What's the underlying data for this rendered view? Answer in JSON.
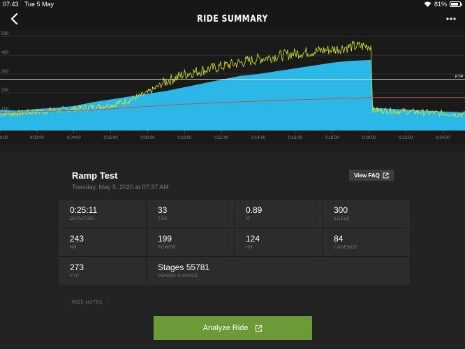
{
  "status_bar": {
    "time": "07:43",
    "date": "Tue 5 May",
    "battery": "81%",
    "battery_level": 0.81
  },
  "nav": {
    "title": "RIDE SUMMARY"
  },
  "chart_data": {
    "type": "area",
    "x_unit": "time",
    "x_ticks": [
      "0:00",
      "0:02:00",
      "0:04:00",
      "0:06:00",
      "0:08:00",
      "0:10:00",
      "0:12:00",
      "0:14:00",
      "0:16:00",
      "0:18:00",
      "0:20:00",
      "0:22:00",
      "0:24:00"
    ],
    "y_ticks": [
      500,
      400,
      300,
      200,
      100
    ],
    "ylim": [
      0,
      530
    ],
    "xlim_minutes": [
      0,
      25.2
    ],
    "ftp_label": "FTP",
    "ftp_value": 273,
    "series": [
      {
        "values_minutes": [
          0,
          1,
          2,
          3,
          4,
          5,
          6,
          7,
          8,
          9,
          10,
          11,
          12,
          13,
          14,
          15,
          16,
          17,
          18,
          19,
          20.1,
          20.2,
          25.2
        ],
        "values": [
          110,
          105,
          115,
          120,
          130,
          150,
          165,
          180,
          195,
          210,
          230,
          250,
          270,
          290,
          300,
          315,
          330,
          345,
          360,
          370,
          375,
          120,
          95
        ]
      },
      {
        "values_minutes": [
          0,
          1,
          2,
          3,
          4,
          5,
          6,
          7,
          8,
          9,
          10,
          11,
          12,
          13,
          14,
          15,
          16,
          17,
          18,
          19,
          20.1,
          20.2,
          25.2
        ],
        "values": [
          90,
          92,
          100,
          108,
          115,
          125,
          135,
          160,
          200,
          260,
          300,
          320,
          340,
          360,
          380,
          395,
          410,
          420,
          430,
          445,
          450,
          110,
          85
        ]
      }
    ],
    "colors": {
      "area": "#2cb8e6",
      "power_line": "#d8e629",
      "avg_line": "#c05050",
      "ftp_line": "#ffffff"
    }
  },
  "ride": {
    "title": "Ramp Test",
    "date": "Tuesday, May 5, 2020 at 07:37 AM",
    "faq_label": "View FAQ"
  },
  "stats": [
    {
      "value": "0:25:11",
      "label": "DURATION"
    },
    {
      "value": "33",
      "label": "TSS"
    },
    {
      "value": "0.89",
      "label": "IF"
    },
    {
      "value": "300",
      "label": "kJ(Cal)"
    },
    {
      "value": "243",
      "label": "NP"
    },
    {
      "value": "199",
      "label": "POWER"
    },
    {
      "value": "124",
      "label": "HR"
    },
    {
      "value": "84",
      "label": "CADENCE"
    },
    {
      "value": "273",
      "label": "FTP"
    },
    {
      "value": "Stages 55781",
      "label": "POWER SOURCE"
    }
  ],
  "notes_label": "RIDE NOTES",
  "analyze_label": "Analyze Ride",
  "colors": {
    "accent_green": "#6b9a36",
    "background": "#232323",
    "card": "#2c2c2c"
  }
}
